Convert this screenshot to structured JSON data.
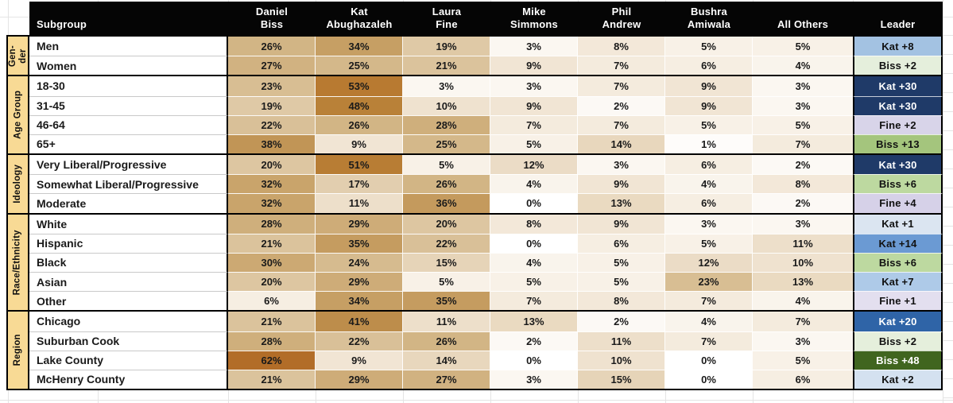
{
  "sheet": {
    "background": "#ffffff",
    "gridline_color": "#e4e4e4"
  },
  "header": {
    "subgroup_label": "Subgroup",
    "leader_label": "Leader",
    "candidates_display": [
      [
        "Daniel",
        "Biss"
      ],
      [
        "Kat",
        "Abughazaleh"
      ],
      [
        "Laura",
        "Fine"
      ],
      [
        "Mike",
        "Simmons"
      ],
      [
        "Phil",
        "Andrew"
      ],
      [
        "Bushra",
        "Amiwala"
      ],
      [
        "All Others"
      ]
    ],
    "bg": "#050505",
    "fg": "#ffffff"
  },
  "group_display": {
    "Gender": [
      "Gen-",
      "der"
    ],
    "Age Group": [
      "Age Group"
    ],
    "Ideology": [
      "Ideology"
    ],
    "Race/Ethnicity": [
      "Race/Ethnicity"
    ],
    "Region": [
      "Region"
    ]
  },
  "styles": {
    "group_label_bg": "#f8da95",
    "value_text_color": "#1a1a1a",
    "heat_anchors": [
      [
        0,
        "#ffffff"
      ],
      [
        5,
        "#f8f1e7"
      ],
      [
        10,
        "#efe2cf"
      ],
      [
        15,
        "#e6d4b8"
      ],
      [
        20,
        "#ddc6a1"
      ],
      [
        25,
        "#d4b88a"
      ],
      [
        30,
        "#cca973"
      ],
      [
        35,
        "#c59c60"
      ],
      [
        41,
        "#bd8d4b"
      ],
      [
        48,
        "#b98138"
      ],
      [
        53,
        "#b87a31"
      ],
      [
        62,
        "#b26d28"
      ]
    ],
    "leader_colors": {
      "Kat +1": {
        "bg": "#dbe5f1",
        "fg": "#111111"
      },
      "Kat +2": {
        "bg": "#d4e1f0",
        "fg": "#111111"
      },
      "Kat +7": {
        "bg": "#aecae8",
        "fg": "#111111"
      },
      "Kat +8": {
        "bg": "#a3c2e2",
        "fg": "#111111"
      },
      "Kat +14": {
        "bg": "#6b9ad3",
        "fg": "#111111"
      },
      "Kat +20": {
        "bg": "#2f64a7",
        "fg": "#ffffff"
      },
      "Kat +30": {
        "bg": "#1f3a68",
        "fg": "#ffffff"
      },
      "Biss +2": {
        "bg": "#e5efdc",
        "fg": "#111111"
      },
      "Biss +6": {
        "bg": "#bdd9a0",
        "fg": "#111111"
      },
      "Biss +13": {
        "bg": "#a4c57d",
        "fg": "#111111"
      },
      "Biss +48": {
        "bg": "#40651f",
        "fg": "#ffffff"
      },
      "Fine +1": {
        "bg": "#e3dfef",
        "fg": "#111111"
      },
      "Fine +2": {
        "bg": "#d8d4e9",
        "fg": "#111111"
      },
      "Fine +4": {
        "bg": "#d6d1e8",
        "fg": "#111111"
      }
    }
  },
  "chart_data": {
    "type": "heatmap",
    "unit": "%",
    "subgroup_column": "Subgroup",
    "leader_column": "Leader",
    "columns": [
      "Daniel Biss",
      "Kat Abughazaleh",
      "Laura Fine",
      "Mike Simmons",
      "Phil Andrew",
      "Bushra Amiwala",
      "All Others"
    ],
    "heat_range": [
      0,
      62
    ],
    "groups": [
      {
        "group": "Gender",
        "rows": [
          {
            "subgroup": "Men",
            "values": [
              26,
              34,
              19,
              3,
              8,
              5,
              5
            ],
            "leader": "Kat +8"
          },
          {
            "subgroup": "Women",
            "values": [
              27,
              25,
              21,
              9,
              7,
              6,
              4
            ],
            "leader": "Biss +2"
          }
        ]
      },
      {
        "group": "Age Group",
        "rows": [
          {
            "subgroup": "18-30",
            "values": [
              23,
              53,
              3,
              3,
              7,
              9,
              3
            ],
            "leader": "Kat +30"
          },
          {
            "subgroup": "31-45",
            "values": [
              19,
              48,
              10,
              9,
              2,
              9,
              3
            ],
            "leader": "Kat +30"
          },
          {
            "subgroup": "46-64",
            "values": [
              22,
              26,
              28,
              7,
              7,
              5,
              5
            ],
            "leader": "Fine +2"
          },
          {
            "subgroup": "65+",
            "values": [
              38,
              9,
              25,
              5,
              14,
              1,
              7
            ],
            "leader": "Biss +13"
          }
        ]
      },
      {
        "group": "Ideology",
        "rows": [
          {
            "subgroup": "Very Liberal/Progressive",
            "values": [
              20,
              51,
              5,
              12,
              3,
              6,
              2
            ],
            "leader": "Kat +30"
          },
          {
            "subgroup": "Somewhat Liberal/Progressive",
            "values": [
              32,
              17,
              26,
              4,
              9,
              4,
              8
            ],
            "leader": "Biss +6"
          },
          {
            "subgroup": "Moderate",
            "values": [
              32,
              11,
              36,
              0,
              13,
              6,
              2
            ],
            "leader": "Fine +4"
          }
        ]
      },
      {
        "group": "Race/Ethnicity",
        "rows": [
          {
            "subgroup": "White",
            "values": [
              28,
              29,
              20,
              8,
              9,
              3,
              3
            ],
            "leader": "Kat +1"
          },
          {
            "subgroup": "Hispanic",
            "values": [
              21,
              35,
              22,
              0,
              6,
              5,
              11
            ],
            "leader": "Kat +14"
          },
          {
            "subgroup": "Black",
            "values": [
              30,
              24,
              15,
              4,
              5,
              12,
              10
            ],
            "leader": "Biss +6"
          },
          {
            "subgroup": "Asian",
            "values": [
              20,
              29,
              5,
              5,
              5,
              23,
              13
            ],
            "leader": "Kat +7"
          },
          {
            "subgroup": "Other",
            "values": [
              6,
              34,
              35,
              7,
              8,
              7,
              4
            ],
            "leader": "Fine +1"
          }
        ]
      },
      {
        "group": "Region",
        "rows": [
          {
            "subgroup": "Chicago",
            "values": [
              21,
              41,
              11,
              13,
              2,
              4,
              7
            ],
            "leader": "Kat +20"
          },
          {
            "subgroup": "Suburban Cook",
            "values": [
              28,
              22,
              26,
              2,
              11,
              7,
              3
            ],
            "leader": "Biss +2"
          },
          {
            "subgroup": "Lake County",
            "values": [
              62,
              9,
              14,
              0,
              10,
              0,
              5
            ],
            "leader": "Biss +48"
          },
          {
            "subgroup": "McHenry County",
            "values": [
              21,
              29,
              27,
              3,
              15,
              0,
              6
            ],
            "leader": "Kat +2"
          }
        ]
      }
    ]
  }
}
